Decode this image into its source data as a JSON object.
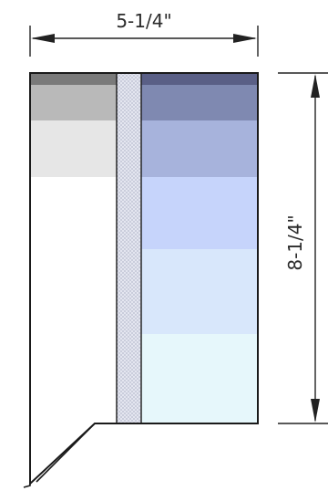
{
  "dimensions": {
    "width_label": "5-1/4\"",
    "height_label": "8-1/4\""
  },
  "bands": [
    {
      "name": "band-dark-top",
      "left_color": "#7a7a7a",
      "right_color": "#5a5f86"
    },
    {
      "name": "band-2",
      "left_color": "#b9b9b9",
      "right_color": "#7f89b1"
    },
    {
      "name": "band-3",
      "left_color": "#e6e6e6",
      "right_color": "#a7b3dc"
    },
    {
      "name": "band-4",
      "left_color": "#ffffff",
      "right_color": "#c6d4fb"
    },
    {
      "name": "band-5",
      "left_color": "#ffffff",
      "right_color": "#d8e7fb"
    },
    {
      "name": "band-6",
      "left_color": "#ffffff",
      "right_color": "#e6f7fb"
    }
  ],
  "colors": {
    "stroke": "#1a1a1a",
    "stipple": "#9aa0b5",
    "strip_fill": "#e4e6f0"
  }
}
